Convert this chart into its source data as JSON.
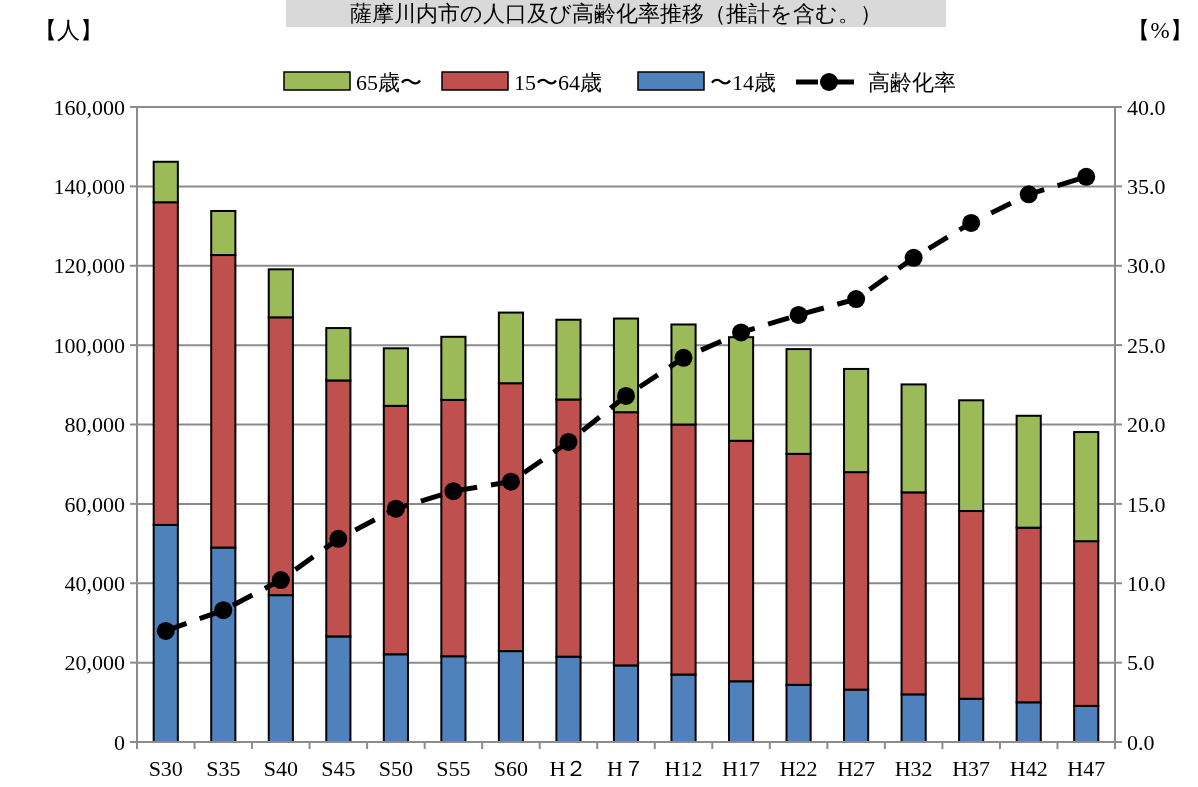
{
  "chart_data": {
    "type": "bar",
    "title": "薩摩川内市の人口及び高齢化率推移（推計を含む。）",
    "ylabel": "【人】",
    "y2label": "【%】",
    "categories": [
      "S30",
      "S35",
      "S40",
      "S45",
      "S50",
      "S55",
      "S60",
      "H２",
      "H７",
      "H12",
      "H17",
      "H22",
      "H27",
      "H32",
      "H37",
      "H42",
      "H47"
    ],
    "stacked": true,
    "legend": "top",
    "grid": "y",
    "series": [
      {
        "name": "〜14歳",
        "color": "#4f81bd",
        "values": [
          54700,
          49000,
          37000,
          26600,
          22100,
          21600,
          22900,
          21500,
          19300,
          17000,
          15300,
          14400,
          13200,
          12000,
          10900,
          10000,
          9100
        ]
      },
      {
        "name": "15〜64歳",
        "color": "#c0504d",
        "values": [
          81300,
          73700,
          70000,
          64500,
          62600,
          64600,
          67500,
          64800,
          63800,
          63000,
          60600,
          58200,
          54800,
          50900,
          47300,
          44000,
          41500
        ]
      },
      {
        "name": "65歳〜",
        "color": "#9bbb59",
        "values": [
          10200,
          11100,
          12100,
          13200,
          14500,
          15900,
          17800,
          20100,
          23600,
          25200,
          26100,
          26400,
          26000,
          27200,
          27900,
          28200,
          27500
        ]
      },
      {
        "name": "高齢化率",
        "type": "line",
        "axis": "y2",
        "color": "#000000",
        "marker": "circle",
        "line_style": "dashed",
        "values": [
          7.0,
          8.3,
          10.2,
          12.8,
          14.7,
          15.8,
          16.4,
          18.9,
          21.8,
          24.2,
          25.8,
          26.9,
          27.9,
          30.5,
          32.7,
          34.5,
          35.6
        ]
      }
    ],
    "ylim": [
      0,
      160000
    ],
    "yticks": [
      {
        "value": 0,
        "label": "0"
      },
      {
        "value": 20000,
        "label": "20,000"
      },
      {
        "value": 40000,
        "label": "40,000"
      },
      {
        "value": 60000,
        "label": "60,000"
      },
      {
        "value": 80000,
        "label": "80,000"
      },
      {
        "value": 100000,
        "label": "100,000"
      },
      {
        "value": 120000,
        "label": "120,000"
      },
      {
        "value": 140000,
        "label": "140,000"
      },
      {
        "value": 160000,
        "label": "160,000"
      }
    ],
    "y2lim": [
      0,
      40
    ],
    "y2ticks": [
      {
        "value": 0,
        "label": "0.0"
      },
      {
        "value": 5,
        "label": "5.0"
      },
      {
        "value": 10,
        "label": "10.0"
      },
      {
        "value": 15,
        "label": "15.0"
      },
      {
        "value": 20,
        "label": "20.0"
      },
      {
        "value": 25,
        "label": "25.0"
      },
      {
        "value": 30,
        "label": "30.0"
      },
      {
        "value": 35,
        "label": "35.0"
      },
      {
        "value": 40,
        "label": "40.0"
      }
    ]
  }
}
